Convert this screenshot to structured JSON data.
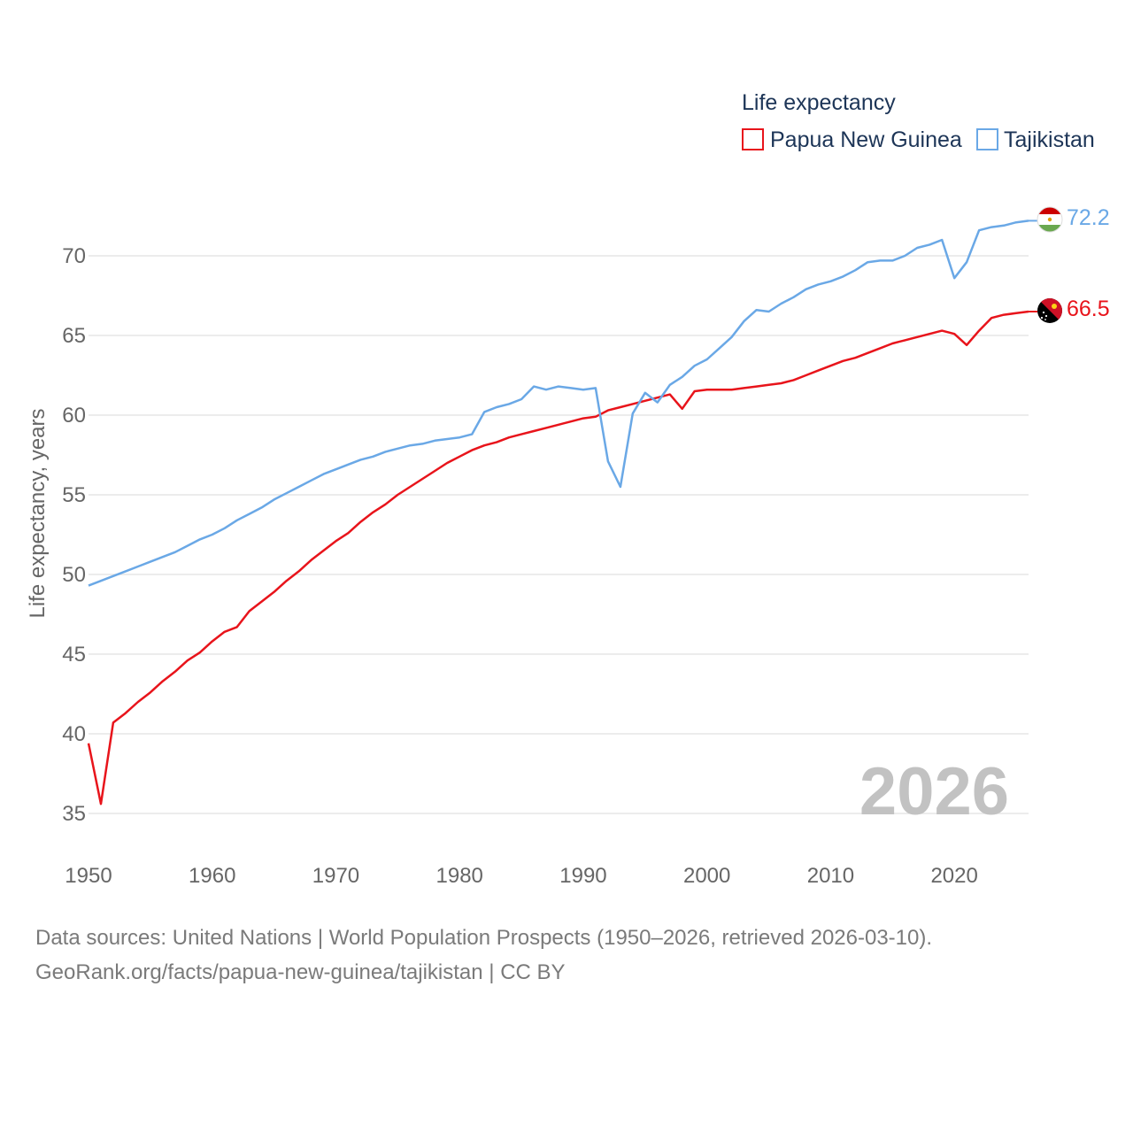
{
  "colors": {
    "png": "#e8141b",
    "tjk": "#6aa8e6",
    "grid": "#e6e6e6",
    "tick": "#666666",
    "year": "#c2c2c2"
  },
  "legend": {
    "title": "Life expectancy",
    "items": [
      "Papua New Guinea",
      "Tajikistan"
    ]
  },
  "year_watermark": "2026",
  "footer": {
    "line1": "Data sources: United Nations | World Population Prospects (1950–2026, retrieved 2026-03-10).",
    "line2": "GeoRank.org/facts/papua-new-guinea/tajikistan | CC BY"
  },
  "chart_data": {
    "type": "line",
    "ylabel": "Life expectancy, years",
    "xlabel": "",
    "xlim": [
      1950,
      2026
    ],
    "ylim": [
      33,
      74
    ],
    "x_ticks": [
      1950,
      1960,
      1970,
      1980,
      1990,
      2000,
      2010,
      2020
    ],
    "y_ticks": [
      35,
      40,
      45,
      50,
      55,
      60,
      65,
      70
    ],
    "x_tick_labels": [
      "1950",
      "1960",
      "1970",
      "1980",
      "1990",
      "2000",
      "2010",
      "2020"
    ],
    "y_tick_labels": [
      "35",
      "40",
      "45",
      "50",
      "55",
      "60",
      "65",
      "70"
    ],
    "x": [
      1950,
      1951,
      1952,
      1953,
      1954,
      1955,
      1956,
      1957,
      1958,
      1959,
      1960,
      1961,
      1962,
      1963,
      1964,
      1965,
      1966,
      1967,
      1968,
      1969,
      1970,
      1971,
      1972,
      1973,
      1974,
      1975,
      1976,
      1977,
      1978,
      1979,
      1980,
      1981,
      1982,
      1983,
      1984,
      1985,
      1986,
      1987,
      1988,
      1989,
      1990,
      1991,
      1992,
      1993,
      1994,
      1995,
      1996,
      1997,
      1998,
      1999,
      2000,
      2001,
      2002,
      2003,
      2004,
      2005,
      2006,
      2007,
      2008,
      2009,
      2010,
      2011,
      2012,
      2013,
      2014,
      2015,
      2016,
      2017,
      2018,
      2019,
      2020,
      2021,
      2022,
      2023,
      2024,
      2025,
      2026
    ],
    "series": [
      {
        "name": "Papua New Guinea",
        "color": "#e8141b",
        "end_label": "66.5",
        "values": [
          39.4,
          35.6,
          40.7,
          41.3,
          42.0,
          42.6,
          43.3,
          43.9,
          44.6,
          45.1,
          45.8,
          46.4,
          46.7,
          47.7,
          48.3,
          48.9,
          49.6,
          50.2,
          50.9,
          51.5,
          52.1,
          52.6,
          53.3,
          53.9,
          54.4,
          55.0,
          55.5,
          56.0,
          56.5,
          57.0,
          57.4,
          57.8,
          58.1,
          58.3,
          58.6,
          58.8,
          59.0,
          59.2,
          59.4,
          59.6,
          59.8,
          59.9,
          60.3,
          60.5,
          60.7,
          60.9,
          61.1,
          61.3,
          60.4,
          61.5,
          61.6,
          61.6,
          61.6,
          61.7,
          61.8,
          61.9,
          62.0,
          62.2,
          62.5,
          62.8,
          63.1,
          63.4,
          63.6,
          63.9,
          64.2,
          64.5,
          64.7,
          64.9,
          65.1,
          65.3,
          65.1,
          64.4,
          65.3,
          66.1,
          66.3,
          66.4,
          66.5
        ]
      },
      {
        "name": "Tajikistan",
        "color": "#6aa8e6",
        "end_label": "72.2",
        "values": [
          49.3,
          49.6,
          49.9,
          50.2,
          50.5,
          50.8,
          51.1,
          51.4,
          51.8,
          52.2,
          52.5,
          52.9,
          53.4,
          53.8,
          54.2,
          54.7,
          55.1,
          55.5,
          55.9,
          56.3,
          56.6,
          56.9,
          57.2,
          57.4,
          57.7,
          57.9,
          58.1,
          58.2,
          58.4,
          58.5,
          58.6,
          58.8,
          60.2,
          60.5,
          60.7,
          61.0,
          61.8,
          61.6,
          61.8,
          61.7,
          61.6,
          61.7,
          57.1,
          55.5,
          60.1,
          61.4,
          60.8,
          61.9,
          62.4,
          63.1,
          63.5,
          64.2,
          64.9,
          65.9,
          66.6,
          66.5,
          67.0,
          67.4,
          67.9,
          68.2,
          68.4,
          68.7,
          69.1,
          69.6,
          69.7,
          69.7,
          70.0,
          70.5,
          70.7,
          71.0,
          68.6,
          69.6,
          71.6,
          71.8,
          71.9,
          72.1,
          72.2
        ]
      }
    ]
  }
}
